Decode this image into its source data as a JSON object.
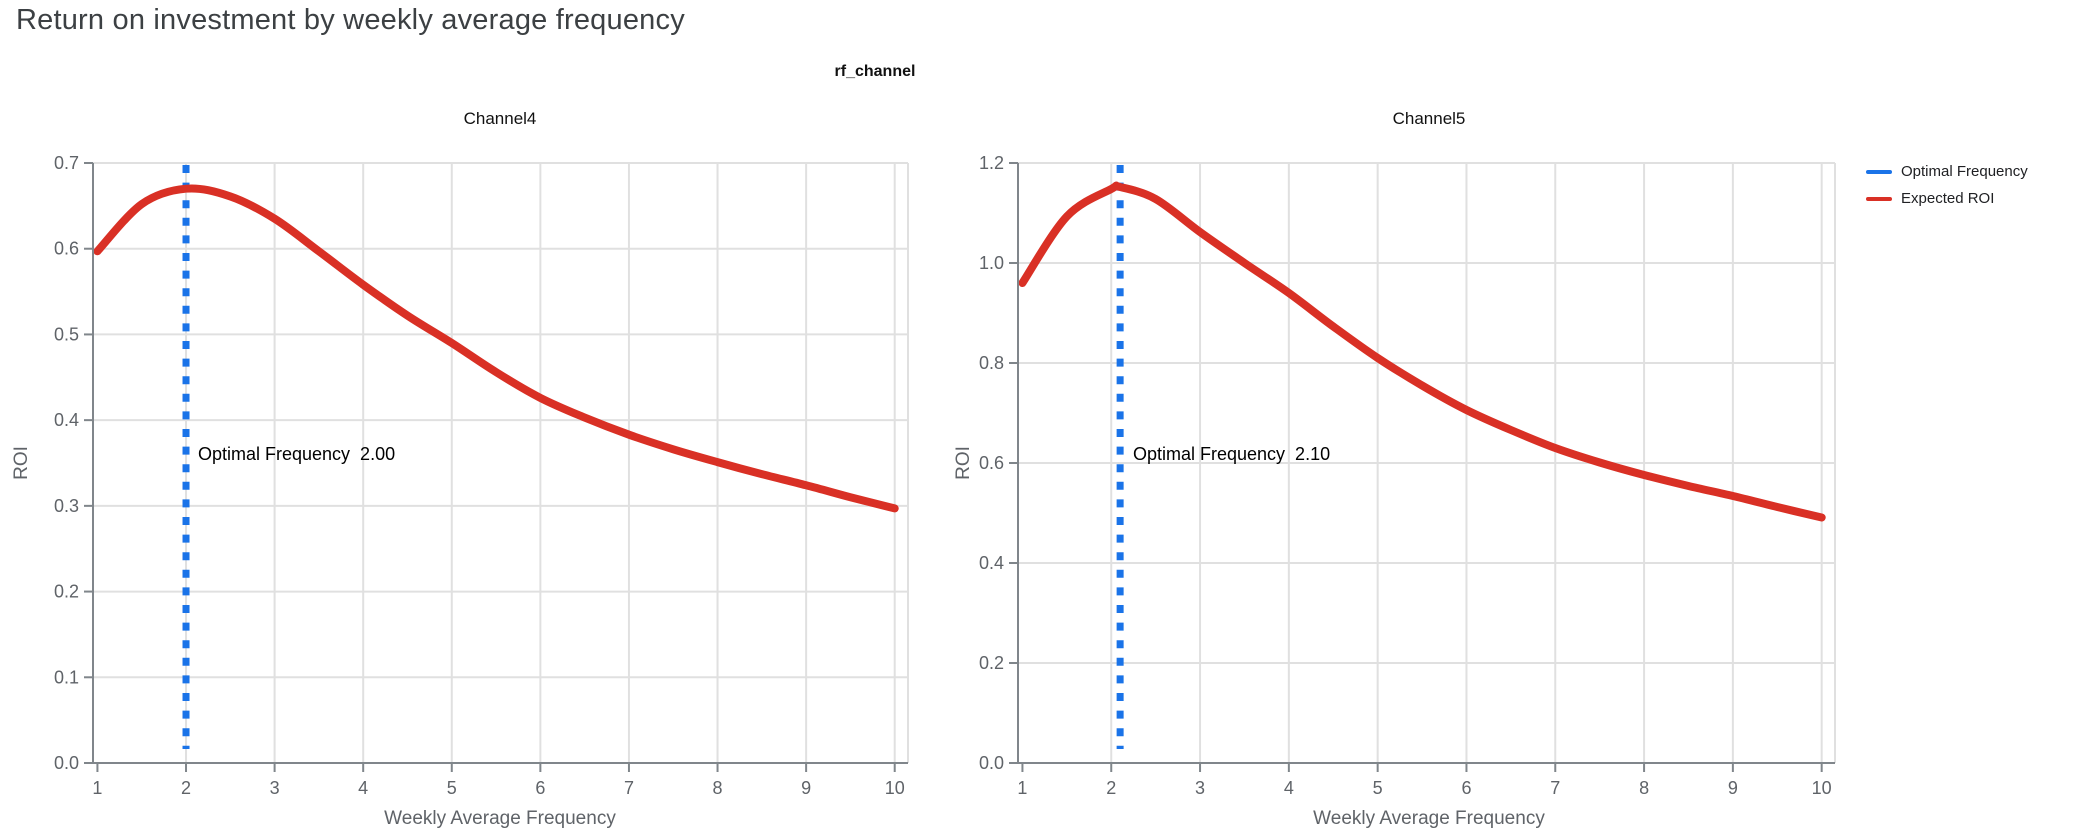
{
  "page": {
    "title": "Return on investment by weekly average frequency",
    "subtitle": "rf_channel"
  },
  "legend": {
    "position": "top-right",
    "items": [
      {
        "label": "Optimal Frequency",
        "color": "#1a73e8"
      },
      {
        "label": "Expected ROI",
        "color": "#d93025"
      }
    ]
  },
  "colors": {
    "optimal_frequency_blue": "#1a73e8",
    "expected_roi_red": "#d93025",
    "gridline": "#e0e0e0",
    "axis_line": "#80868b",
    "tick_text": "#5f6368",
    "title_text": "#3c4043",
    "background": "#ffffff"
  },
  "chart_data": [
    {
      "type": "line",
      "title": "Channel4",
      "xlabel": "Weekly Average Frequency",
      "ylabel": "ROI",
      "annotation": "Optimal Frequency  2.00",
      "optimal_frequency": 2.0,
      "grid": true,
      "xlim": [
        0.95,
        10.15
      ],
      "ylim": [
        0,
        0.7
      ],
      "xticks": [
        1,
        2,
        3,
        4,
        5,
        6,
        7,
        8,
        9,
        10
      ],
      "yticks": [
        0,
        0.1,
        0.2,
        0.3,
        0.4,
        0.5,
        0.6,
        0.7
      ],
      "ytick_labels": [
        "0.0",
        "0.1",
        "0.2",
        "0.3",
        "0.4",
        "0.5",
        "0.6",
        "0.7"
      ],
      "series": [
        {
          "name": "Expected ROI",
          "x": [
            1,
            1.5,
            2,
            2.5,
            3,
            3.5,
            4,
            4.5,
            5,
            5.5,
            6,
            6.5,
            7,
            7.5,
            8,
            8.5,
            9,
            9.5,
            10
          ],
          "roi": [
            0.597,
            0.652,
            0.67,
            0.661,
            0.635,
            0.597,
            0.558,
            0.522,
            0.49,
            0.456,
            0.426,
            0.403,
            0.383,
            0.366,
            0.351,
            0.337,
            0.324,
            0.31,
            0.297
          ]
        },
        {
          "name": "Optimal Frequency",
          "type": "vline-dashed",
          "x": 2.0
        }
      ]
    },
    {
      "type": "line",
      "title": "Channel5",
      "xlabel": "Weekly Average Frequency",
      "ylabel": "ROI",
      "annotation": "Optimal Frequency  2.10",
      "optimal_frequency": 2.1,
      "grid": true,
      "xlim": [
        0.95,
        10.15
      ],
      "ylim": [
        0,
        1.2
      ],
      "xticks": [
        1,
        2,
        3,
        4,
        5,
        6,
        7,
        8,
        9,
        10
      ],
      "yticks": [
        0,
        0.2,
        0.4,
        0.6,
        0.8,
        1.0,
        1.2
      ],
      "ytick_labels": [
        "0.0",
        "0.2",
        "0.4",
        "0.6",
        "0.8",
        "1.0",
        "1.2"
      ],
      "series": [
        {
          "name": "Expected ROI",
          "x": [
            1,
            1.5,
            2,
            2.1,
            2.5,
            3,
            3.5,
            4,
            4.5,
            5,
            5.5,
            6,
            6.5,
            7,
            7.5,
            8,
            8.5,
            9,
            9.5,
            10
          ],
          "roi": [
            0.96,
            1.093,
            1.148,
            1.152,
            1.128,
            1.062,
            1.0,
            0.94,
            0.873,
            0.81,
            0.755,
            0.706,
            0.666,
            0.63,
            0.601,
            0.576,
            0.554,
            0.534,
            0.512,
            0.491
          ]
        },
        {
          "name": "Optimal Frequency",
          "type": "vline-dashed",
          "x": 2.1
        }
      ]
    }
  ]
}
